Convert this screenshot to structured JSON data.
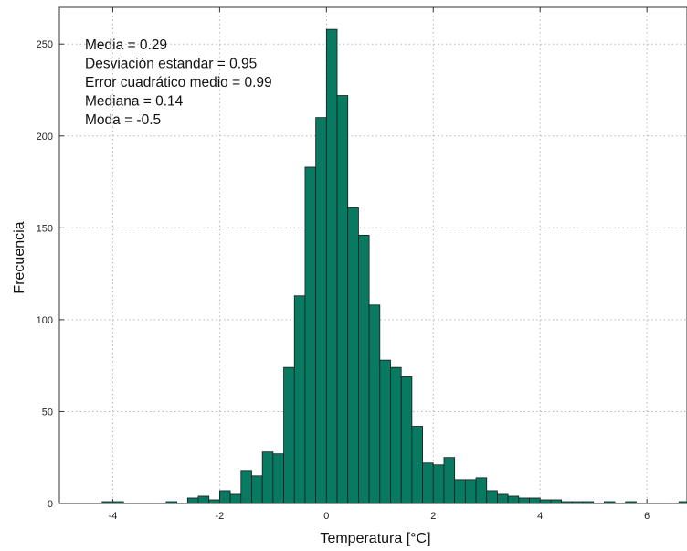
{
  "chart_data": {
    "type": "bar",
    "title": "",
    "xlabel": "Temperatura [°C]",
    "ylabel": "Frecuencia",
    "xlim": [
      -5,
      6.75
    ],
    "ylim": [
      0,
      270
    ],
    "x_ticks": [
      -4,
      -2,
      0,
      2,
      4,
      6
    ],
    "y_ticks": [
      0,
      50,
      100,
      150,
      200,
      250
    ],
    "grid": true,
    "bar_color": "#087a62",
    "bin_width": 0.2,
    "bins": [
      {
        "x": -4.2,
        "value": 1
      },
      {
        "x": -4.0,
        "value": 1
      },
      {
        "x": -3.0,
        "value": 1
      },
      {
        "x": -2.6,
        "value": 3
      },
      {
        "x": -2.4,
        "value": 4
      },
      {
        "x": -2.2,
        "value": 2
      },
      {
        "x": -2.0,
        "value": 7
      },
      {
        "x": -1.8,
        "value": 5
      },
      {
        "x": -1.6,
        "value": 18
      },
      {
        "x": -1.4,
        "value": 15
      },
      {
        "x": -1.2,
        "value": 28
      },
      {
        "x": -1.0,
        "value": 27
      },
      {
        "x": -0.8,
        "value": 74
      },
      {
        "x": -0.6,
        "value": 113
      },
      {
        "x": -0.4,
        "value": 183
      },
      {
        "x": -0.2,
        "value": 210
      },
      {
        "x": 0.0,
        "value": 258
      },
      {
        "x": 0.2,
        "value": 222
      },
      {
        "x": 0.4,
        "value": 161
      },
      {
        "x": 0.6,
        "value": 146
      },
      {
        "x": 0.8,
        "value": 108
      },
      {
        "x": 1.0,
        "value": 78
      },
      {
        "x": 1.2,
        "value": 74
      },
      {
        "x": 1.4,
        "value": 69
      },
      {
        "x": 1.6,
        "value": 42
      },
      {
        "x": 1.8,
        "value": 22
      },
      {
        "x": 2.0,
        "value": 21
      },
      {
        "x": 2.2,
        "value": 25
      },
      {
        "x": 2.4,
        "value": 13
      },
      {
        "x": 2.6,
        "value": 13
      },
      {
        "x": 2.8,
        "value": 14
      },
      {
        "x": 3.0,
        "value": 7
      },
      {
        "x": 3.2,
        "value": 5
      },
      {
        "x": 3.4,
        "value": 4
      },
      {
        "x": 3.6,
        "value": 3
      },
      {
        "x": 3.8,
        "value": 3
      },
      {
        "x": 4.0,
        "value": 2
      },
      {
        "x": 4.2,
        "value": 2
      },
      {
        "x": 4.4,
        "value": 1
      },
      {
        "x": 4.6,
        "value": 1
      },
      {
        "x": 4.8,
        "value": 1
      },
      {
        "x": 5.2,
        "value": 1
      },
      {
        "x": 5.6,
        "value": 1
      },
      {
        "x": 6.6,
        "value": 1
      }
    ],
    "annotations": [
      "Media = 0.29",
      "Desviación estandar = 0.95",
      "Error cuadrático medio = 0.99",
      "Mediana = 0.14",
      "Moda = -0.5"
    ]
  }
}
